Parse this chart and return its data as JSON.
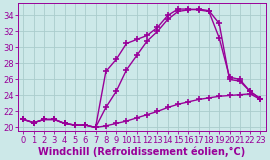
{
  "background_color": "#cce8e8",
  "grid_color": "#aacccc",
  "line_color": "#990099",
  "marker": "+",
  "markersize": 4,
  "linewidth": 1.0,
  "xlabel": "Windchill (Refroidissement éolien,°C)",
  "xlabel_fontsize": 7,
  "tick_fontsize": 6,
  "xlim": [
    -0.5,
    23.5
  ],
  "ylim": [
    19.5,
    35.5
  ],
  "yticks": [
    20,
    22,
    24,
    26,
    28,
    30,
    32,
    34
  ],
  "xticks": [
    0,
    1,
    2,
    3,
    4,
    5,
    6,
    7,
    8,
    9,
    10,
    11,
    12,
    13,
    14,
    15,
    16,
    17,
    18,
    19,
    20,
    21,
    22,
    23
  ],
  "curve1_x": [
    0,
    1,
    2,
    3,
    4,
    5,
    6,
    7,
    8,
    9,
    10,
    11,
    12,
    13,
    14,
    15,
    16,
    17,
    18,
    19,
    20,
    21,
    22,
    23
  ],
  "curve1_y": [
    21.0,
    20.6,
    21.0,
    21.0,
    20.5,
    20.3,
    20.3,
    20.0,
    20.2,
    20.5,
    20.8,
    21.2,
    21.6,
    22.0,
    22.5,
    22.9,
    23.2,
    23.5,
    23.7,
    23.9,
    24.0,
    24.1,
    24.2,
    23.5
  ],
  "curve2_x": [
    0,
    1,
    2,
    3,
    4,
    5,
    6,
    7,
    8,
    9,
    10,
    11,
    12,
    13,
    14,
    15,
    16,
    17,
    18,
    19,
    20,
    21,
    22,
    23
  ],
  "curve2_y": [
    21.0,
    20.6,
    21.0,
    21.0,
    20.5,
    20.3,
    20.3,
    20.0,
    27.0,
    28.5,
    30.5,
    31.0,
    31.5,
    32.5,
    34.0,
    34.8,
    34.8,
    34.7,
    34.5,
    31.2,
    26.3,
    26.0,
    24.5,
    23.6
  ],
  "curve3_x": [
    0,
    1,
    2,
    3,
    4,
    5,
    6,
    7,
    8,
    9,
    10,
    11,
    12,
    13,
    14,
    15,
    16,
    17,
    18,
    19,
    20,
    21,
    22,
    23
  ],
  "curve3_y": [
    21.0,
    20.6,
    21.0,
    21.0,
    20.5,
    20.3,
    20.3,
    20.0,
    22.5,
    24.5,
    27.2,
    29.0,
    30.8,
    32.0,
    33.5,
    34.5,
    34.7,
    34.8,
    34.6,
    33.0,
    26.0,
    25.8,
    24.5,
    23.6
  ]
}
